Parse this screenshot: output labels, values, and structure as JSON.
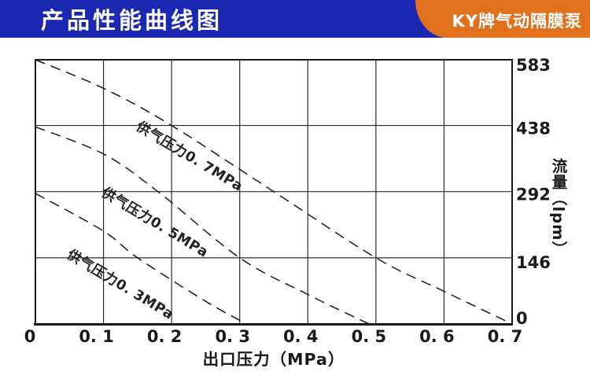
{
  "header": {
    "title": "产品性能曲线图",
    "badge": "KY牌气动隔膜泵",
    "colors": {
      "blue": "#1b28b2",
      "orange": "#e0701c",
      "text": "#ffffff"
    }
  },
  "chart_data": {
    "type": "line",
    "title": "产品性能曲线图",
    "xlabel": "出口压力（MPa）",
    "ylabel": "流量（lpm）",
    "xlim": [
      0,
      0.7
    ],
    "ylim": [
      0,
      583
    ],
    "grid": true,
    "legend": "inline-rotated-labels",
    "y_axis_side": "right",
    "x_ticks": [
      "0",
      "0. 1",
      "0. 2",
      "0. 3",
      "0. 4",
      "0. 5",
      "0. 6",
      "0. 7"
    ],
    "x_tick_values": [
      0,
      0.1,
      0.2,
      0.3,
      0.4,
      0.5,
      0.6,
      0.7
    ],
    "y_ticks": [
      "583",
      "438",
      "292",
      "146",
      "0"
    ],
    "y_tick_values": [
      583,
      438,
      292,
      146,
      0
    ],
    "line_style": "dashed",
    "line_color": "#1a1a1a",
    "series": [
      {
        "name": "供气压力0. 7MPa",
        "points": [
          [
            0,
            583
          ],
          [
            0.1,
            520
          ],
          [
            0.2,
            438
          ],
          [
            0.35,
            292
          ],
          [
            0.5,
            146
          ],
          [
            0.6,
            72
          ],
          [
            0.7,
            0
          ]
        ],
        "label_pos": {
          "x": 172,
          "y": 164,
          "angle": 31
        }
      },
      {
        "name": "供气压力0. 5MPa",
        "points": [
          [
            0,
            435
          ],
          [
            0.1,
            375
          ],
          [
            0.18,
            292
          ],
          [
            0.3,
            146
          ],
          [
            0.4,
            65
          ],
          [
            0.49,
            0
          ]
        ],
        "label_pos": {
          "x": 128,
          "y": 248,
          "angle": 31
        }
      },
      {
        "name": "供气压力0. 3MPa",
        "points": [
          [
            0,
            288
          ],
          [
            0.1,
            205
          ],
          [
            0.15,
            146
          ],
          [
            0.25,
            50
          ],
          [
            0.31,
            0
          ]
        ],
        "label_pos": {
          "x": 84,
          "y": 327,
          "angle": 31
        }
      }
    ]
  }
}
